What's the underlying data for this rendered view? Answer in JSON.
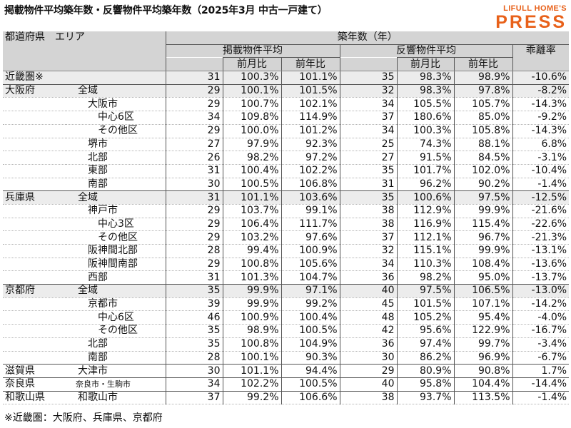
{
  "title": "掲載物件平均築年数・反響物件平均築年数（2025年3月 中古一戸建て）",
  "logo": {
    "top": "LIFULL HOME'S",
    "main": "PRESS",
    "color": "#e8611a"
  },
  "headers": {
    "region": "都道府県　エリア",
    "age": "築年数（年）",
    "listed": "掲載物件平均",
    "inquiry": "反響物件平均",
    "gap": "乖離率",
    "mom": "前月比",
    "yoy": "前年比"
  },
  "colors": {
    "header_bg": "#d4d4d4",
    "highlight_bg": "#ececec",
    "title_text": "#111111",
    "logo": "#e8611a"
  },
  "rows": [
    {
      "pref": "近畿圏※",
      "area": "",
      "l": "31",
      "lm": "100.3%",
      "ly": "101.1%",
      "i": "35",
      "im": "98.3%",
      "iy": "98.9%",
      "gap": "-10.6%"
    },
    {
      "pref": "大阪府",
      "area": "　全域",
      "l": "29",
      "lm": "100.1%",
      "ly": "101.5%",
      "i": "32",
      "im": "98.3%",
      "iy": "97.8%",
      "gap": "-8.2%"
    },
    {
      "pref": "",
      "area": "　　大阪市",
      "l": "29",
      "lm": "100.7%",
      "ly": "102.1%",
      "i": "34",
      "im": "105.5%",
      "iy": "105.7%",
      "gap": "-14.3%"
    },
    {
      "pref": "",
      "area": "　　　中心6区",
      "l": "34",
      "lm": "109.8%",
      "ly": "114.9%",
      "i": "37",
      "im": "180.6%",
      "iy": "85.0%",
      "gap": "-9.2%"
    },
    {
      "pref": "",
      "area": "　　　その他区",
      "l": "29",
      "lm": "100.0%",
      "ly": "101.2%",
      "i": "34",
      "im": "100.3%",
      "iy": "105.8%",
      "gap": "-14.3%"
    },
    {
      "pref": "",
      "area": "　　堺市",
      "l": "27",
      "lm": "97.9%",
      "ly": "92.3%",
      "i": "25",
      "im": "74.3%",
      "iy": "88.1%",
      "gap": "6.8%"
    },
    {
      "pref": "",
      "area": "　　北部",
      "l": "26",
      "lm": "98.2%",
      "ly": "97.2%",
      "i": "27",
      "im": "91.5%",
      "iy": "84.5%",
      "gap": "-3.1%"
    },
    {
      "pref": "",
      "area": "　　東部",
      "l": "31",
      "lm": "100.4%",
      "ly": "102.2%",
      "i": "35",
      "im": "101.7%",
      "iy": "102.0%",
      "gap": "-10.4%"
    },
    {
      "pref": "",
      "area": "　　南部",
      "l": "30",
      "lm": "100.5%",
      "ly": "106.8%",
      "i": "31",
      "im": "96.2%",
      "iy": "90.2%",
      "gap": "-1.4%"
    },
    {
      "pref": "兵庫県",
      "area": "　全域",
      "l": "31",
      "lm": "101.1%",
      "ly": "103.6%",
      "i": "35",
      "im": "100.6%",
      "iy": "97.5%",
      "gap": "-12.5%"
    },
    {
      "pref": "",
      "area": "　　神戸市",
      "l": "29",
      "lm": "103.7%",
      "ly": "99.1%",
      "i": "38",
      "im": "112.9%",
      "iy": "99.9%",
      "gap": "-21.6%"
    },
    {
      "pref": "",
      "area": "　　　中心3区",
      "l": "29",
      "lm": "106.4%",
      "ly": "111.7%",
      "i": "38",
      "im": "116.9%",
      "iy": "115.4%",
      "gap": "-22.6%"
    },
    {
      "pref": "",
      "area": "　　　その他区",
      "l": "29",
      "lm": "103.2%",
      "ly": "97.6%",
      "i": "37",
      "im": "112.1%",
      "iy": "96.7%",
      "gap": "-21.3%"
    },
    {
      "pref": "",
      "area": "　　阪神間北部",
      "l": "28",
      "lm": "99.4%",
      "ly": "100.9%",
      "i": "32",
      "im": "115.1%",
      "iy": "99.9%",
      "gap": "-13.1%"
    },
    {
      "pref": "",
      "area": "　　阪神間南部",
      "l": "29",
      "lm": "100.8%",
      "ly": "105.6%",
      "i": "34",
      "im": "110.3%",
      "iy": "108.4%",
      "gap": "-13.6%"
    },
    {
      "pref": "",
      "area": "　　西部",
      "l": "31",
      "lm": "101.3%",
      "ly": "104.7%",
      "i": "36",
      "im": "98.2%",
      "iy": "95.0%",
      "gap": "-13.7%"
    },
    {
      "pref": "京都府",
      "area": "　全域",
      "l": "35",
      "lm": "99.9%",
      "ly": "97.1%",
      "i": "40",
      "im": "97.5%",
      "iy": "106.5%",
      "gap": "-13.0%"
    },
    {
      "pref": "",
      "area": "　　京都市",
      "l": "39",
      "lm": "99.9%",
      "ly": "99.2%",
      "i": "45",
      "im": "101.5%",
      "iy": "107.1%",
      "gap": "-14.2%"
    },
    {
      "pref": "",
      "area": "　　　中心6区",
      "l": "46",
      "lm": "100.9%",
      "ly": "100.4%",
      "i": "48",
      "im": "105.2%",
      "iy": "95.4%",
      "gap": "-4.0%"
    },
    {
      "pref": "",
      "area": "　　　その他区",
      "l": "35",
      "lm": "98.9%",
      "ly": "100.5%",
      "i": "42",
      "im": "95.6%",
      "iy": "122.9%",
      "gap": "-16.7%"
    },
    {
      "pref": "",
      "area": "　　北部",
      "l": "35",
      "lm": "100.8%",
      "ly": "104.9%",
      "i": "36",
      "im": "97.4%",
      "iy": "99.7%",
      "gap": "-3.4%"
    },
    {
      "pref": "",
      "area": "　　南部",
      "l": "28",
      "lm": "100.1%",
      "ly": "90.3%",
      "i": "30",
      "im": "86.2%",
      "iy": "96.9%",
      "gap": "-6.7%"
    },
    {
      "pref": "滋賀県",
      "area": "　大津市",
      "l": "30",
      "lm": "101.1%",
      "ly": "94.4%",
      "i": "29",
      "im": "80.9%",
      "iy": "90.8%",
      "gap": "1.7%"
    },
    {
      "pref": "奈良県",
      "area": "　奈良市・生駒市",
      "l": "34",
      "lm": "102.2%",
      "ly": "100.5%",
      "i": "40",
      "im": "95.8%",
      "iy": "104.4%",
      "gap": "-14.4%"
    },
    {
      "pref": "和歌山県",
      "area": "　和歌山市",
      "l": "37",
      "lm": "99.2%",
      "ly": "106.6%",
      "i": "38",
      "im": "93.7%",
      "iy": "113.5%",
      "gap": "-1.4%"
    }
  ],
  "footnote": "※近畿圏：大阪府、兵庫県、京都府"
}
